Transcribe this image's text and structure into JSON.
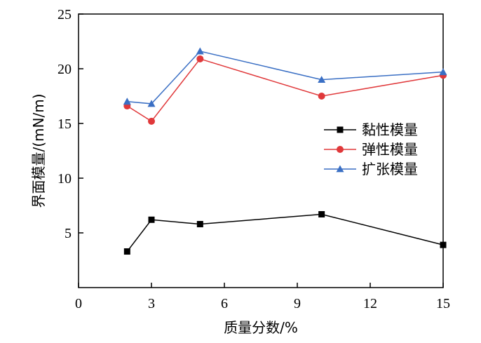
{
  "chart_data": {
    "type": "line",
    "title": "",
    "xlabel": "质量分数/%",
    "ylabel": "界面模量/(mN/m)",
    "xlim": [
      0,
      15
    ],
    "ylim": [
      0,
      25
    ],
    "xticks": [
      0,
      3,
      6,
      9,
      12,
      15
    ],
    "yticks": [
      5,
      10,
      15,
      20,
      25
    ],
    "grid": false,
    "legend_position": "right-center",
    "series": [
      {
        "name": "黏性模量",
        "color": "#000000",
        "marker": "square",
        "x": [
          2,
          3,
          5,
          10,
          15
        ],
        "y": [
          3.3,
          6.2,
          5.8,
          6.7,
          3.9
        ]
      },
      {
        "name": "弹性模量",
        "color": "#e0383a",
        "marker": "circle",
        "x": [
          2,
          3,
          5,
          10,
          15
        ],
        "y": [
          16.6,
          15.2,
          20.9,
          17.5,
          19.4
        ]
      },
      {
        "name": "扩张模量",
        "color": "#3a6fc4",
        "marker": "triangle",
        "x": [
          2,
          3,
          5,
          10,
          15
        ],
        "y": [
          17.0,
          16.8,
          21.6,
          19.0,
          19.7
        ]
      }
    ]
  }
}
